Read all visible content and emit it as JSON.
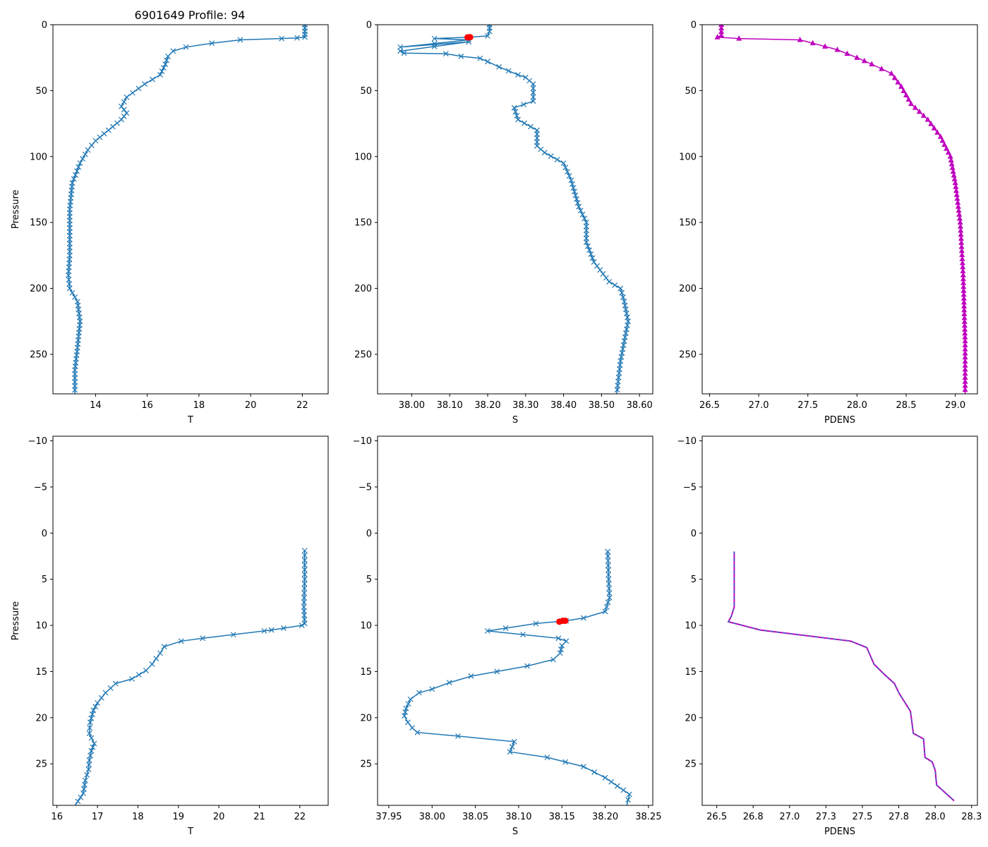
{
  "figure": {
    "title": "6901649 Profile: 94",
    "colors": {
      "series": "#1f77b4",
      "marker_red": "#ff0000",
      "density": "#bf00bf",
      "density_dash": "#1f77b4"
    }
  },
  "chart_data": [
    {
      "id": "top-temperature",
      "type": "line",
      "title": "6901649 Profile: 94",
      "xlabel": "T",
      "ylabel": "Pressure",
      "xlim": [
        12.35,
        23.0
      ],
      "ylim": [
        280,
        0
      ],
      "xticks": [
        14,
        16,
        18,
        20,
        22
      ],
      "yticks": [
        0,
        50,
        100,
        150,
        200,
        250
      ],
      "marker": "x",
      "series": [
        {
          "name": "T",
          "x": [
            22.1,
            22.1,
            22.1,
            21.8,
            21.2,
            19.6,
            18.5,
            17.5,
            17.0,
            16.8,
            16.7,
            16.5,
            15.9,
            15.2,
            15.0,
            15.2,
            15.0,
            14.5,
            14.0,
            13.7,
            13.4,
            13.1,
            13.0,
            13.0,
            13.0,
            12.95,
            13.0,
            13.3,
            13.4,
            13.3,
            13.2,
            13.2
          ],
          "y": [
            0,
            5,
            9.5,
            10,
            10.5,
            11.5,
            14,
            17,
            20,
            24,
            30,
            38,
            45,
            55,
            62,
            67,
            72,
            80,
            88,
            95,
            105,
            120,
            140,
            160,
            175,
            190,
            200,
            210,
            225,
            245,
            262,
            280
          ]
        }
      ]
    },
    {
      "id": "top-salinity",
      "type": "line",
      "xlabel": "S",
      "ylabel": "",
      "xlim": [
        37.91,
        38.635
      ],
      "ylim": [
        280,
        0
      ],
      "xticks": [
        38.0,
        38.1,
        38.2,
        38.3,
        38.4,
        38.5,
        38.6
      ],
      "yticks": [
        0,
        50,
        100,
        150,
        200,
        250
      ],
      "marker": "x",
      "series": [
        {
          "name": "S",
          "x": [
            38.205,
            38.205,
            38.2,
            38.15,
            38.06,
            38.15,
            37.97,
            38.15,
            37.97,
            37.98,
            38.09,
            38.13,
            38.18,
            38.2,
            38.23,
            38.28,
            38.3,
            38.32,
            38.32,
            38.27,
            38.28,
            38.33,
            38.33,
            38.35,
            38.4,
            38.42,
            38.44,
            38.46,
            38.46,
            38.48,
            38.52,
            38.55,
            38.56,
            38.57,
            38.55,
            38.54
          ],
          "y": [
            0,
            5,
            8.5,
            9.5,
            10.5,
            11.5,
            17,
            13,
            20,
            21.5,
            22,
            24,
            25.5,
            28,
            32,
            38,
            40,
            45,
            58,
            63,
            72,
            80,
            92,
            97,
            105,
            118,
            138,
            150,
            165,
            180,
            195,
            200,
            210,
            225,
            255,
            280
          ]
        }
      ],
      "highlight": {
        "name": "density-threshold",
        "color": "#ff0000",
        "x": [
          38.147,
          38.151,
          38.154
        ],
        "y": [
          9.6,
          9.5,
          9.5
        ]
      }
    },
    {
      "id": "top-density",
      "type": "line",
      "xlabel": "PDENS",
      "ylabel": "",
      "xlim": [
        26.425,
        29.225
      ],
      "ylim": [
        280,
        0
      ],
      "xticks": [
        26.5,
        27.0,
        27.5,
        28.0,
        28.5,
        29.0
      ],
      "yticks": [
        0,
        50,
        100,
        150,
        200,
        250
      ],
      "marker": "^",
      "series": [
        {
          "name": "PDENS",
          "x": [
            26.62,
            26.62,
            26.58,
            26.8,
            27.42,
            27.55,
            27.8,
            28.0,
            28.15,
            28.35,
            28.45,
            28.55,
            28.72,
            28.85,
            28.95,
            29.0,
            29.05,
            29.08,
            29.1,
            29.1
          ],
          "y": [
            0,
            8,
            9.5,
            10.5,
            11.5,
            14,
            19,
            25,
            30,
            37,
            47,
            60,
            72,
            85,
            100,
            120,
            150,
            190,
            240,
            280
          ]
        }
      ]
    },
    {
      "id": "bottom-temperature",
      "type": "line",
      "xlabel": "T",
      "ylabel": "Pressure",
      "xlim": [
        15.9,
        22.7
      ],
      "ylim": [
        29.5,
        -10.5
      ],
      "xticks": [
        16,
        17,
        18,
        19,
        20,
        21,
        22
      ],
      "yticks": [
        -10,
        -5,
        0,
        5,
        10,
        15,
        20,
        25
      ],
      "marker": "x",
      "series": [
        {
          "name": "T",
          "x": [
            22.12,
            22.12,
            22.1,
            22.12,
            22.05,
            21.6,
            21.3,
            21.12,
            19.6,
            19.07,
            18.65,
            18.55,
            18.35,
            18.2,
            17.85,
            17.45,
            17.2,
            17.0,
            16.9,
            16.82,
            16.8,
            16.85,
            16.92,
            16.85,
            16.8,
            16.78,
            16.7,
            16.65,
            16.45
          ],
          "y": [
            1.9,
            5,
            8,
            9.8,
            10.0,
            10.3,
            10.5,
            10.6,
            11.4,
            11.7,
            12.3,
            13.0,
            14.2,
            14.9,
            15.8,
            16.3,
            17.3,
            18.4,
            19.2,
            20.5,
            21.7,
            22.2,
            22.8,
            23.6,
            24.6,
            25.6,
            26.8,
            28.2,
            29.5
          ]
        }
      ]
    },
    {
      "id": "bottom-salinity",
      "type": "line",
      "xlabel": "S",
      "ylabel": "",
      "xlim": [
        37.937,
        38.255
      ],
      "ylim": [
        29.5,
        -10.5
      ],
      "xticks": [
        37.95,
        38.0,
        38.05,
        38.1,
        38.15,
        38.2,
        38.25
      ],
      "yticks": [
        -10,
        -5,
        0,
        5,
        10,
        15,
        20,
        25
      ],
      "marker": "x",
      "series": [
        {
          "name": "S",
          "x": [
            38.203,
            38.204,
            38.205,
            38.2,
            38.175,
            38.155,
            38.12,
            38.085,
            38.064,
            38.146,
            38.155,
            38.15,
            38.148,
            38.14,
            38.11,
            38.075,
            38.045,
            38.02,
            38.0,
            37.985,
            37.975,
            37.97,
            37.968,
            37.972,
            37.977,
            37.983,
            38.03,
            38.095,
            38.09,
            38.133,
            38.175,
            38.2,
            38.228,
            38.225
          ],
          "y": [
            2,
            5,
            7,
            8.5,
            9.2,
            9.5,
            9.8,
            10.3,
            10.6,
            11.4,
            11.7,
            12.2,
            13.0,
            13.7,
            14.4,
            15.0,
            15.5,
            16.2,
            16.9,
            17.3,
            18.0,
            19.0,
            19.8,
            20.5,
            21.1,
            21.6,
            22.0,
            22.6,
            23.7,
            24.3,
            25.3,
            26.5,
            28.3,
            29.5
          ]
        }
      ],
      "highlight": {
        "name": "density-threshold",
        "color": "#ff0000",
        "x": [
          38.147,
          38.151,
          38.154
        ],
        "y": [
          9.6,
          9.5,
          9.5
        ]
      }
    },
    {
      "id": "bottom-density",
      "type": "line",
      "xlabel": "PDENS",
      "ylabel": "",
      "xlim": [
        26.4,
        28.29
      ],
      "ylim": [
        29.5,
        -10.5
      ],
      "xticks": [
        26.5,
        26.75,
        27.0,
        27.25,
        27.5,
        27.75,
        28.0,
        28.25
      ],
      "yticks": [
        -10,
        -5,
        0,
        5,
        10,
        15,
        20,
        25
      ],
      "marker": "none",
      "series": [
        {
          "name": "PDENS",
          "x": [
            26.62,
            26.62,
            26.6,
            26.58,
            26.8,
            27.42,
            27.53,
            27.58,
            27.65,
            27.72,
            27.75,
            27.83,
            27.85,
            27.92,
            27.93,
            27.98,
            28.0,
            28.01,
            28.13
          ],
          "y": [
            2,
            8,
            9.0,
            9.6,
            10.5,
            11.7,
            12.4,
            14.2,
            15.3,
            16.3,
            17.3,
            19.3,
            21.7,
            22.3,
            24.3,
            24.8,
            25.7,
            27.3,
            29.0
          ]
        }
      ]
    }
  ]
}
